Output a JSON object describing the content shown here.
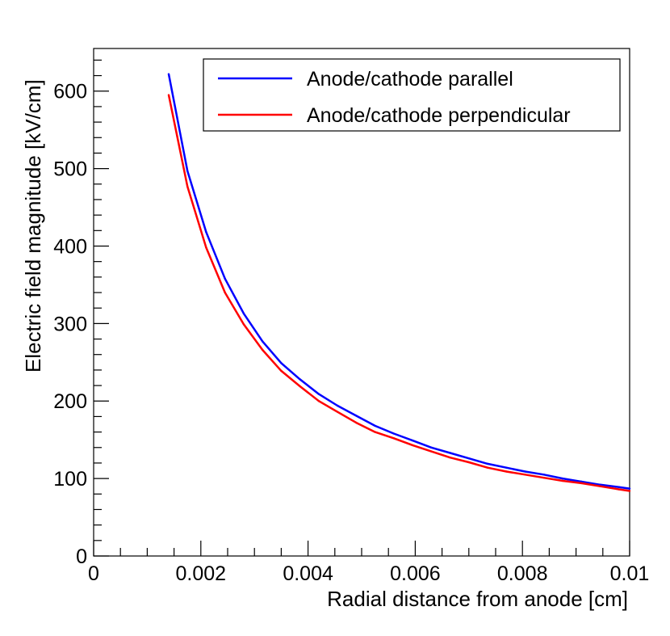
{
  "chart_data": {
    "type": "line",
    "xlabel": "Radial distance from anode [cm]",
    "ylabel": "Electric field magnitude [kV/cm]",
    "xlim": [
      0,
      0.01
    ],
    "ylim": [
      0,
      655
    ],
    "x_ticks": [
      "0",
      "0.002",
      "0.004",
      "0.006",
      "0.008",
      "0.01"
    ],
    "y_ticks": [
      "0",
      "100",
      "200",
      "300",
      "400",
      "500",
      "600"
    ],
    "grid": false,
    "legend_position": "top-right",
    "series": [
      {
        "name": "Anode/cathode parallel",
        "color": "#0000ff",
        "x": [
          0.0014,
          0.00175,
          0.0021,
          0.00245,
          0.0028,
          0.00315,
          0.0035,
          0.00385,
          0.0042,
          0.00455,
          0.0049,
          0.00525,
          0.0056,
          0.00595,
          0.0063,
          0.00665,
          0.007,
          0.00735,
          0.0077,
          0.00805,
          0.0084,
          0.00875,
          0.0091,
          0.00945,
          0.0098,
          0.01
        ],
        "y": [
          622,
          497,
          418,
          358,
          313,
          277,
          249,
          228,
          209,
          194,
          181,
          168,
          158,
          149,
          140,
          133,
          126,
          119,
          114,
          109,
          105,
          100,
          96,
          92,
          89,
          87
        ]
      },
      {
        "name": "Anode/cathode perpendicular",
        "color": "#ff0000",
        "x": [
          0.0014,
          0.00175,
          0.0021,
          0.00245,
          0.0028,
          0.00315,
          0.0035,
          0.00385,
          0.0042,
          0.00455,
          0.0049,
          0.00525,
          0.0056,
          0.00595,
          0.0063,
          0.00665,
          0.007,
          0.00735,
          0.0077,
          0.00805,
          0.0084,
          0.00875,
          0.0091,
          0.00945,
          0.0098,
          0.01
        ],
        "y": [
          595,
          477,
          398,
          340,
          299,
          266,
          239,
          219,
          200,
          186,
          172,
          160,
          152,
          143,
          135,
          127,
          121,
          114,
          109,
          105,
          101,
          97,
          94,
          90,
          86,
          84
        ]
      }
    ]
  }
}
